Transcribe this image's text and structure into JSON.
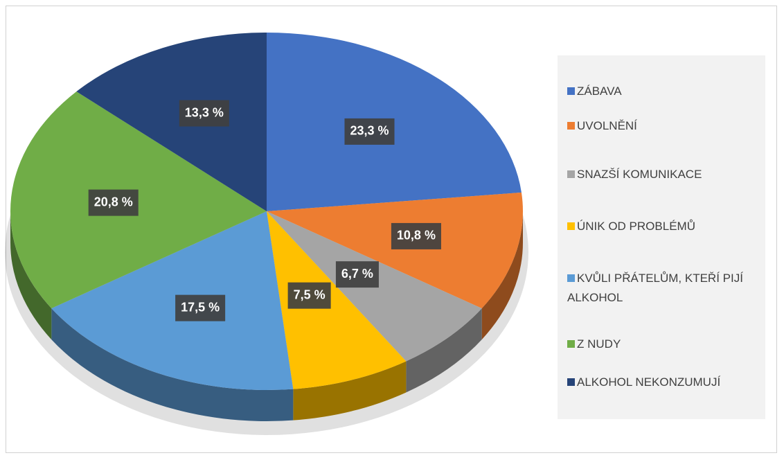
{
  "chart_data": {
    "type": "pie",
    "categories": [
      "ZÁBAVA",
      "UVOLNĚNÍ",
      "SNAZŠÍ KOMUNIKACE",
      "ÚNIK OD PROBLÉMŮ",
      "KVŮLI PŘÁTELŮM, KTEŘÍ PIJÍ ALKOHOL",
      "Z NUDY",
      "ALKOHOL NEKONZUMUJÍ"
    ],
    "values": [
      23.3,
      10.8,
      6.7,
      7.5,
      17.5,
      20.8,
      13.3
    ],
    "value_labels": [
      "23,3 %",
      "10,8 %",
      "6,7 %",
      "7,5 %",
      "17,5 %",
      "20,8 %",
      "13,3 %"
    ],
    "colors": [
      "#4472c4",
      "#ed7d31",
      "#a5a5a5",
      "#ffc000",
      "#5b9bd5",
      "#70ad47",
      "#264478"
    ],
    "legend": "right"
  }
}
